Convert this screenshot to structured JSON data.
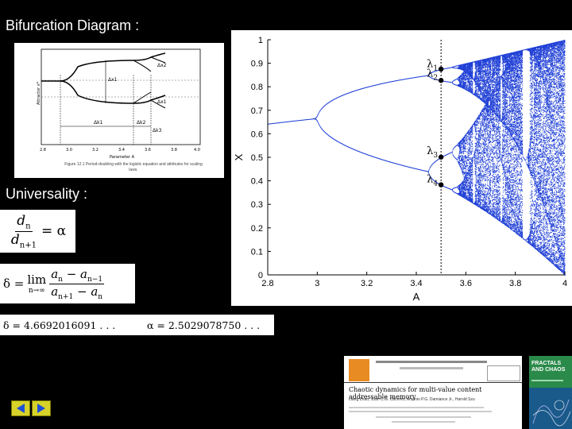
{
  "slide": {
    "heading_bifurcation": "Bifurcation Diagram :",
    "heading_universality": "Universality :"
  },
  "thumbnail": {
    "caption": "Figure 12.1 Period-doubling with the logistic equation and attributes for scaling laws.",
    "ylabel": "Attractor x*",
    "xlabel": "Parameter A",
    "tick_labels": [
      "2.8",
      "3.0",
      "3.2",
      "3.4",
      "3.6",
      "3.8",
      "4.0"
    ],
    "annotations": [
      "Δx1",
      "Δx2",
      "Δx1",
      "Δk1",
      "Δk2",
      "Δk3"
    ]
  },
  "formulas": {
    "ratio_left": "d",
    "ratio_num_sub": "n",
    "ratio_den_sub": "n+1",
    "ratio_eq": "= α",
    "delta_prefix": "δ =",
    "lim_text": "lim",
    "lim_sub": "n→∞",
    "delta_num": "a",
    "delta_num_sub1": "n",
    "delta_num_mid": " − a",
    "delta_num_sub2": "n−1",
    "delta_den": "a",
    "delta_den_sub1": "n+1",
    "delta_den_mid": " − a",
    "delta_den_sub2": "n",
    "constants": "δ = 4.6692016091 . . .          α = 2.5029078750 . . ."
  },
  "chart_data": {
    "type": "scatter",
    "title": "",
    "xlabel": "A",
    "ylabel": "X",
    "xlim": [
      2.8,
      4.0
    ],
    "ylim": [
      0,
      1
    ],
    "xticks": [
      "2.8",
      "3",
      "3.2",
      "3.4",
      "3.6",
      "3.8",
      "4"
    ],
    "yticks": [
      "0",
      "0.1",
      "0.2",
      "0.3",
      "0.4",
      "0.5",
      "0.6",
      "0.7",
      "0.8",
      "0.9",
      "1"
    ],
    "marker_line_x": 3.5,
    "lambda_labels": [
      {
        "base": "λ",
        "sub": "1",
        "x": 3.5,
        "y": 0.87
      },
      {
        "base": "λ",
        "sub": "2",
        "x": 3.5,
        "y": 0.83
      },
      {
        "base": "λ",
        "sub": "3",
        "x": 3.5,
        "y": 0.5
      },
      {
        "base": "λ",
        "sub": "4",
        "x": 3.5,
        "y": 0.38
      }
    ],
    "lambda_points": [
      {
        "x": 3.5,
        "y": 0.875
      },
      {
        "x": 3.5,
        "y": 0.827
      },
      {
        "x": 3.5,
        "y": 0.501
      },
      {
        "x": 3.5,
        "y": 0.383
      }
    ],
    "series_color": "#1f3fd6"
  },
  "footer": {
    "paper_title": "Chaotic dynamics for multi-value content addressable memory",
    "paper_authors": "Liang Zhao, Juan C.G. Cáceres, Antonio P.G. Damiance Jr., Harold Szu",
    "book_title": "FRACTALS AND CHAOS"
  },
  "nav": {
    "prev_icon": "triangle-left-icon",
    "next_icon": "triangle-right-icon",
    "accent": "#d7d22a"
  }
}
